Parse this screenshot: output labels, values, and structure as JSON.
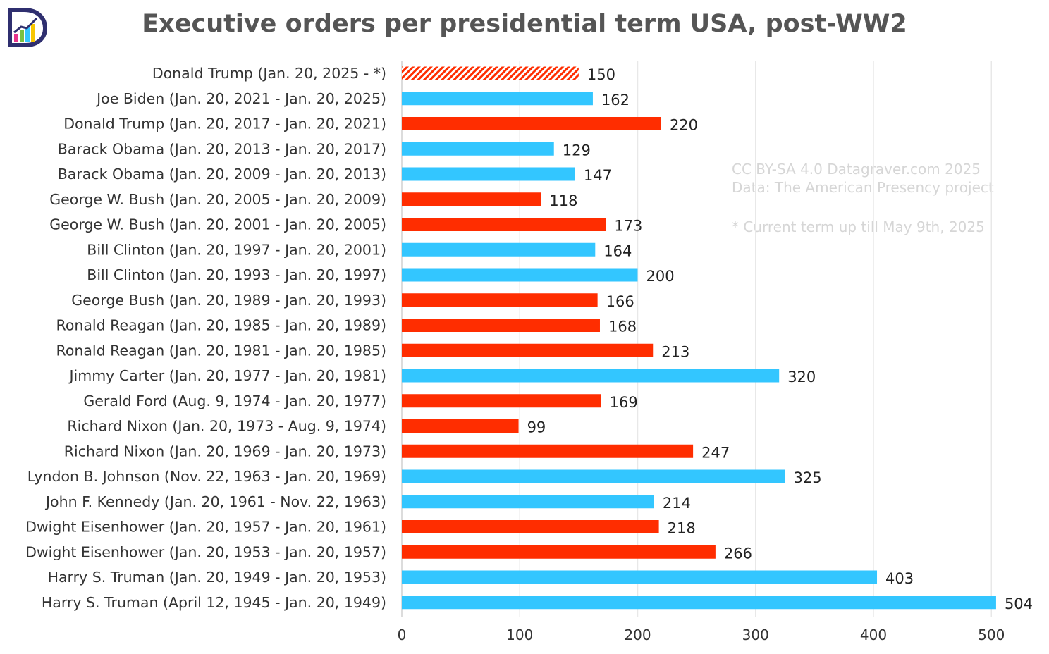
{
  "chart_data": {
    "type": "bar",
    "orientation": "horizontal",
    "title": "Executive orders per presidential term USA, post-WW2",
    "xlim": [
      0,
      500
    ],
    "xticks": [
      0,
      100,
      200,
      300,
      400,
      500
    ],
    "grid": true,
    "categories": [
      "Donald Trump (Jan. 20, 2025 - *)",
      "Joe Biden (Jan. 20, 2021 - Jan. 20, 2025)",
      "Donald Trump (Jan. 20, 2017 - Jan. 20, 2021)",
      "Barack Obama (Jan. 20, 2013 - Jan. 20, 2017)",
      "Barack Obama (Jan. 20, 2009 - Jan. 20, 2013)",
      "George W. Bush (Jan. 20, 2005 - Jan. 20, 2009)",
      "George W. Bush (Jan. 20, 2001 - Jan. 20, 2005)",
      "Bill Clinton (Jan. 20, 1997 - Jan. 20, 2001)",
      "Bill Clinton (Jan. 20, 1993 - Jan. 20, 1997)",
      "George Bush (Jan. 20, 1989 - Jan. 20, 1993)",
      "Ronald Reagan (Jan. 20, 1985 - Jan. 20, 1989)",
      "Ronald Reagan (Jan. 20, 1981 - Jan. 20, 1985)",
      "Jimmy Carter (Jan. 20, 1977 - Jan. 20, 1981)",
      "Gerald Ford (Aug. 9, 1974 - Jan. 20, 1977)",
      "Richard Nixon (Jan. 20, 1973 - Aug. 9, 1974)",
      "Richard Nixon (Jan. 20, 1969 - Jan. 20, 1973)",
      "Lyndon B. Johnson (Nov. 22, 1963 - Jan. 20, 1969)",
      "John F. Kennedy (Jan. 20, 1961 - Nov. 22, 1963)",
      "Dwight Eisenhower (Jan. 20, 1957 - Jan. 20, 1961)",
      "Dwight Eisenhower (Jan. 20, 1953 - Jan. 20, 1957)",
      "Harry S. Truman (Jan. 20, 1949 - Jan. 20, 1953)",
      "Harry S. Truman (April 12, 1945 - Jan. 20, 1949)"
    ],
    "values": [
      150,
      162,
      220,
      129,
      147,
      118,
      173,
      164,
      200,
      166,
      168,
      213,
      320,
      169,
      99,
      247,
      325,
      214,
      218,
      266,
      403,
      504
    ],
    "bar_colors": [
      "red-hatched",
      "blue",
      "red",
      "blue",
      "blue",
      "red",
      "red",
      "blue",
      "blue",
      "red",
      "red",
      "red",
      "blue",
      "red",
      "red",
      "red",
      "blue",
      "blue",
      "red",
      "red",
      "blue",
      "blue"
    ],
    "palette": {
      "red": "#ff2d00",
      "blue": "#33c6ff"
    }
  },
  "notes": {
    "credit": "CC BY-SA 4.0 Datagraver.com 2025",
    "source": "Data: The American Presency project",
    "footnote": "* Current term up till May 9th, 2025"
  },
  "logo": {
    "icon": "datagraver-logo-icon"
  }
}
